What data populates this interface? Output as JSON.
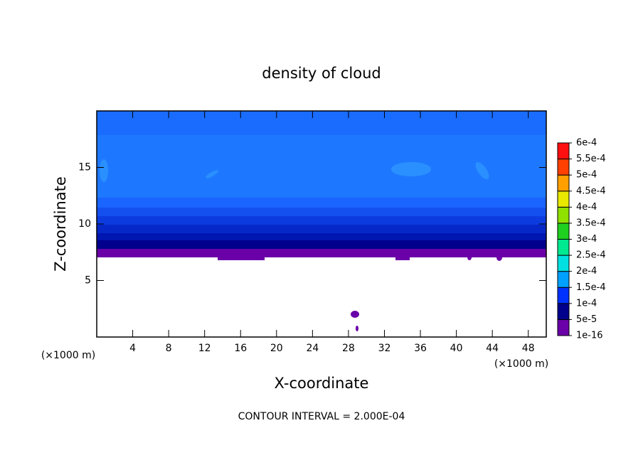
{
  "chart_data": {
    "type": "contour",
    "title": "density of cloud",
    "x_label": "X-coordinate",
    "y_label": "Z-coordinate",
    "y_units": "(×1000 m)",
    "x_units": "(×1000 m)",
    "footer": "CONTOUR INTERVAL = 2.000E-04",
    "xlim": [
      0,
      50
    ],
    "ylim": [
      0,
      20
    ],
    "xticks": [
      4,
      8,
      12,
      16,
      20,
      24,
      28,
      32,
      36,
      40,
      44,
      48
    ],
    "yticks": [
      5,
      10,
      15
    ],
    "colorbar": {
      "levels": [
        {
          "value": 1e-16,
          "label": "1e-16"
        },
        {
          "value": 5e-05,
          "label": "5e-5"
        },
        {
          "value": 0.0001,
          "label": "1e-4"
        },
        {
          "value": 0.00015,
          "label": "1.5e-4"
        },
        {
          "value": 0.0002,
          "label": "2e-4"
        },
        {
          "value": 0.00025,
          "label": "2.5e-4"
        },
        {
          "value": 0.0003,
          "label": "3e-4"
        },
        {
          "value": 0.00035,
          "label": "3.5e-4"
        },
        {
          "value": 0.0004,
          "label": "4e-4"
        },
        {
          "value": 0.00045,
          "label": "4.5e-4"
        },
        {
          "value": 0.0005,
          "label": "5e-4"
        },
        {
          "value": 0.00055,
          "label": "5.5e-4"
        },
        {
          "value": 0.0006,
          "label": "6e-4"
        }
      ],
      "colors": [
        "#6a00a8",
        "#00008c",
        "#0032ff",
        "#00a0ff",
        "#00e0e0",
        "#00e890",
        "#20d020",
        "#90e000",
        "#e8e800",
        "#ffa000",
        "#ff4000",
        "#ff1010"
      ]
    }
  }
}
